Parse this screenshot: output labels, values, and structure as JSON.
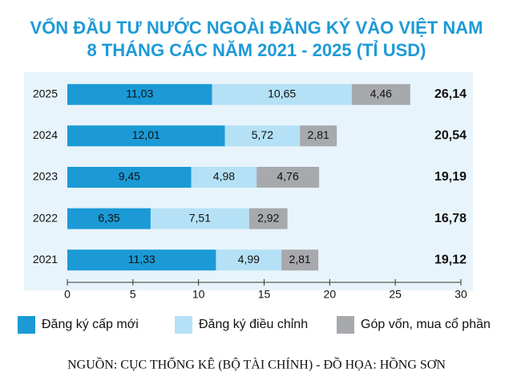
{
  "chart_data": {
    "type": "bar",
    "orientation": "horizontal",
    "stacked": true,
    "title": "VỐN ĐẦU TƯ NƯỚC NGOÀI ĐĂNG KÝ VÀO VIỆT NAM",
    "subtitle": "8 THÁNG CÁC NĂM 2021 - 2025 (TỈ USD)",
    "categories": [
      "2025",
      "2024",
      "2023",
      "2022",
      "2021"
    ],
    "series": [
      {
        "name": "Đăng ký cấp mới",
        "color": "#1b9ad6",
        "values": [
          11.03,
          12.01,
          9.45,
          6.35,
          11.33
        ],
        "value_labels": [
          "11,03",
          "12,01",
          "9,45",
          "6,35",
          "11,33"
        ]
      },
      {
        "name": "Đăng ký điều chỉnh",
        "color": "#b5e1f7",
        "values": [
          10.65,
          5.72,
          4.98,
          7.51,
          4.99
        ],
        "value_labels": [
          "10,65",
          "5,72",
          "4,98",
          "7,51",
          "4,99"
        ]
      },
      {
        "name": "Góp vốn, mua cổ phần",
        "color": "#a7a9ac",
        "values": [
          4.46,
          2.81,
          4.76,
          2.92,
          2.81
        ],
        "value_labels": [
          "4,46",
          "2,81",
          "4,76",
          "2,92",
          "2,81"
        ]
      }
    ],
    "total_labels": [
      "26,14",
      "20,54",
      "19,19",
      "16,78",
      "19,12"
    ],
    "xlim": [
      0,
      30
    ],
    "xticks": [
      0,
      5,
      10,
      15,
      20,
      25,
      30
    ],
    "legend": "bottom",
    "source": "NGUỒN: CỤC THỐNG KÊ (BỘ TÀI CHÍNH) - ĐỒ HỌA: HỒNG SƠN"
  }
}
